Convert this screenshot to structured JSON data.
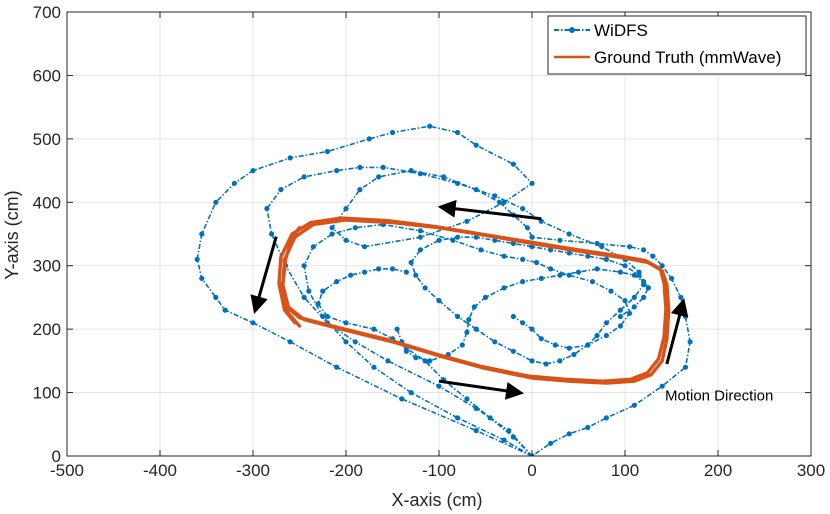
{
  "chart_data": {
    "type": "line",
    "title": "",
    "xlabel": "X-axis (cm)",
    "ylabel": "Y-axis (cm)",
    "xlim": [
      -500,
      300
    ],
    "ylim": [
      0,
      700
    ],
    "xticks": [
      -500,
      -400,
      -300,
      -200,
      -100,
      0,
      100,
      200,
      300
    ],
    "yticks": [
      0,
      100,
      200,
      300,
      400,
      500,
      600,
      700
    ],
    "grid": true,
    "legend_position": "top-right",
    "colors": {
      "widfs": "#0072BD",
      "ground_truth": "#D95319",
      "arrow": "#000000",
      "axis": "#262626",
      "grid": "#DFDFDF"
    },
    "series": [
      {
        "name": "WiDFS",
        "style": "dash-dot with dot markers",
        "paths": [
          {
            "x": [
              0,
              -60,
              -140,
              -210,
              -260,
              -300,
              -330,
              -340,
              -355,
              -360,
              -355,
              -340,
              -320,
              -300,
              -260,
              -220,
              -175,
              -150,
              -110,
              -80,
              -60,
              -20,
              0,
              -30,
              -70,
              -120,
              -180,
              -200,
              -215,
              -200,
              -185,
              -165,
              -130,
              -95,
              -60,
              -35,
              -20,
              -5,
              0,
              30,
              70,
              105,
              120,
              130,
              140,
              150,
              160,
              165,
              170,
              165,
              140,
              110,
              80,
              60,
              40,
              20,
              0
            ],
            "y": [
              0,
              40,
              90,
              140,
              180,
              210,
              230,
              250,
              280,
              310,
              350,
              400,
              430,
              450,
              470,
              480,
              500,
              510,
              520,
              510,
              490,
              460,
              430,
              400,
              370,
              345,
              330,
              340,
              360,
              390,
              420,
              440,
              450,
              440,
              420,
              400,
              380,
              360,
              345,
              340,
              335,
              330,
              325,
              315,
              300,
              280,
              250,
              220,
              180,
              140,
              110,
              80,
              60,
              45,
              35,
              20,
              0
            ]
          },
          {
            "x": [
              0,
              -25,
              -60,
              -100,
              -155,
              -190,
              -220,
              -245,
              -265,
              -280,
              -285,
              -270,
              -245,
              -210,
              -185,
              -160,
              -120,
              -80,
              -40,
              -10,
              10,
              40,
              75,
              100,
              115,
              120,
              110,
              95,
              80,
              70,
              60,
              45,
              30,
              15,
              0,
              -20,
              -40,
              -60
            ],
            "y": [
              0,
              40,
              75,
              110,
              150,
              180,
              210,
              250,
              300,
              350,
              390,
              420,
              440,
              450,
              455,
              455,
              445,
              430,
              410,
              390,
              370,
              350,
              330,
              310,
              290,
              270,
              250,
              230,
              210,
              190,
              175,
              160,
              150,
              145,
              150,
              165,
              180,
              200
            ]
          },
          {
            "x": [
              0,
              -30,
              -80,
              -130,
              -170,
              -200,
              -225,
              -240,
              -245,
              -235,
              -215,
              -190,
              -160,
              -120,
              -85,
              -55,
              -30,
              -10,
              5,
              20,
              40,
              65,
              85,
              100,
              105,
              95,
              80,
              60,
              40,
              25,
              10,
              0,
              -10,
              -20
            ],
            "y": [
              0,
              25,
              60,
              100,
              140,
              180,
              220,
              260,
              300,
              330,
              350,
              360,
              365,
              355,
              340,
              325,
              315,
              310,
              305,
              295,
              285,
              275,
              260,
              245,
              225,
              205,
              190,
              175,
              170,
              175,
              185,
              200,
              210,
              220
            ]
          },
          {
            "x": [
              -145,
              -140,
              -135,
              -125,
              -110,
              -90,
              -75,
              -70,
              -68,
              -62,
              -50,
              -30,
              -10,
              10,
              30,
              50,
              70,
              95,
              110,
              120,
              125,
              120,
              110,
              95
            ],
            "y": [
              200,
              180,
              165,
              155,
              150,
              160,
              175,
              195,
              215,
              235,
              250,
              265,
              275,
              280,
              285,
              290,
              295,
              290,
              285,
              275,
              265,
              250,
              235,
              220
            ]
          },
          {
            "x": [
              0,
              -20,
              -45,
              -70,
              -95,
              -115,
              -135,
              -150,
              -170,
              -200,
              -220,
              -230,
              -225,
              -210,
              -195,
              -180,
              -165,
              -150,
              -135
            ],
            "y": [
              0,
              30,
              60,
              90,
              120,
              150,
              170,
              185,
              200,
              210,
              220,
              240,
              260,
              275,
              285,
              290,
              295,
              295,
              290
            ]
          },
          {
            "x": [
              -60,
              -80,
              -100,
              -115,
              -125,
              -130,
              -120,
              -100,
              -80,
              -60,
              -40,
              -20,
              0,
              20,
              40,
              60,
              80,
              100,
              115,
              125
            ],
            "y": [
              200,
              220,
              245,
              265,
              285,
              305,
              325,
              340,
              345,
              345,
              340,
              335,
              330,
              325,
              320,
              315,
              310,
              300,
              285,
              265
            ]
          }
        ]
      },
      {
        "name": "Ground Truth (mmWave)",
        "style": "solid thick line",
        "paths": [
          {
            "x": [
              -250,
              -262,
              -268,
              -266,
              -255,
              -235,
              -200,
              -150,
              -100,
              -50,
              0,
              50,
              100,
              125,
              140,
              145,
              147,
              145,
              140,
              128,
              110,
              80,
              40,
              0,
              -50,
              -100,
              -150,
              -200,
              -245,
              -262,
              -268,
              -265,
              -258,
              -250
            ],
            "y": [
              205,
              225,
              270,
              310,
              345,
              365,
              372,
              368,
              360,
              348,
              335,
              323,
              312,
              305,
              292,
              270,
              230,
              185,
              150,
              128,
              118,
              115,
              118,
              123,
              138,
              158,
              180,
              198,
              215,
              235,
              270,
              310,
              345,
              360
            ]
          },
          {
            "x": [
              -255,
              -266,
              -272,
              -270,
              -258,
              -238,
              -205,
              -155,
              -105,
              -55,
              -5,
              45,
              95,
              122,
              138,
              142,
              144,
              142,
              136,
              124,
              106,
              76,
              36,
              -4,
              -54,
              -104,
              -154,
              -204,
              -250,
              -266,
              -270
            ],
            "y": [
              210,
              230,
              272,
              314,
              350,
              368,
              375,
              371,
              362,
              350,
              338,
              326,
              315,
              308,
              295,
              272,
              232,
              188,
              153,
              131,
              121,
              118,
              121,
              126,
              141,
              161,
              183,
              201,
              218,
              238,
              272
            ]
          }
        ]
      }
    ],
    "annotations": [
      {
        "text": "Motion Direction",
        "x": 143,
        "y": 95
      },
      {
        "type": "arrow",
        "from_x": 10,
        "from_y": 374,
        "to_x": -95,
        "to_y": 392
      },
      {
        "type": "arrow",
        "from_x": -275,
        "from_y": 346,
        "to_x": -297,
        "to_y": 233
      },
      {
        "type": "arrow",
        "from_x": -100,
        "from_y": 118,
        "to_x": -15,
        "to_y": 100
      },
      {
        "type": "arrow",
        "from_x": 145,
        "from_y": 145,
        "to_x": 162,
        "to_y": 240
      }
    ]
  }
}
